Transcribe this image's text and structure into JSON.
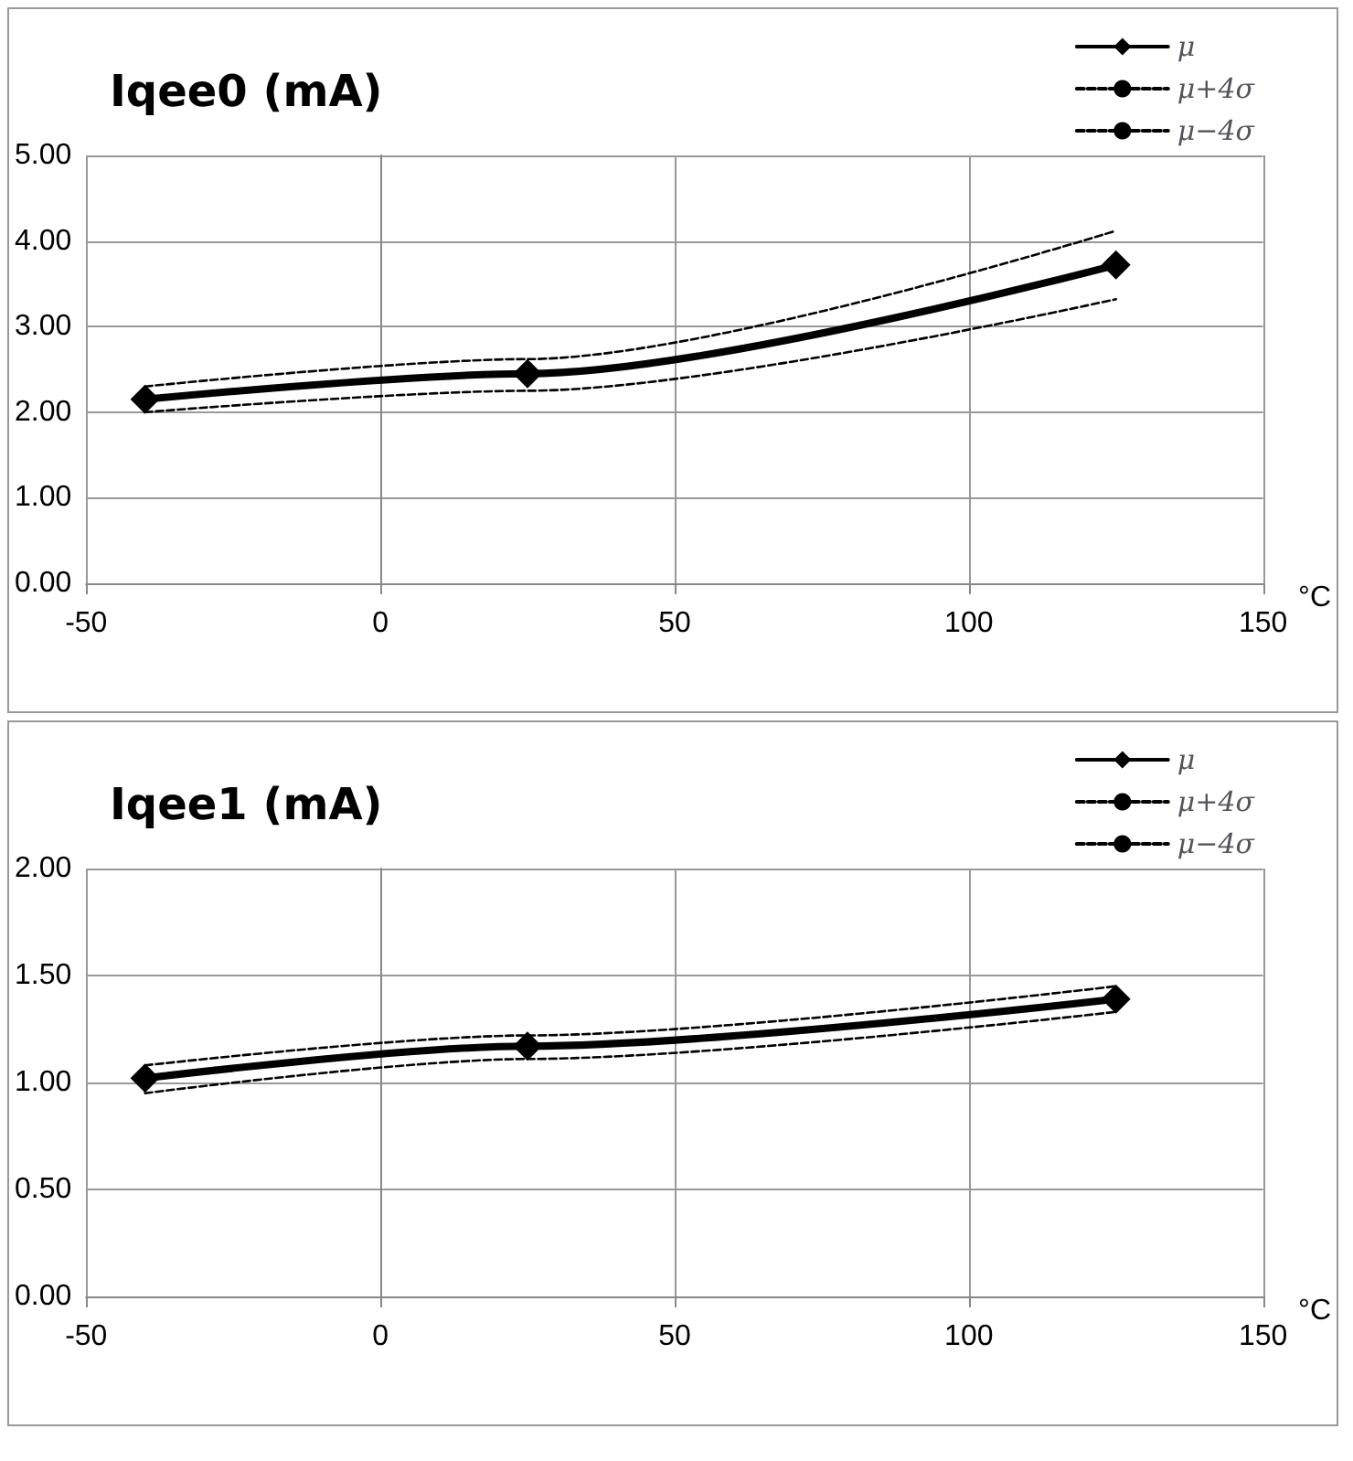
{
  "chart_data": [
    {
      "type": "line",
      "title": "Iqee0 (mA)",
      "xlabel": "°C",
      "x": [
        -40,
        25,
        125
      ],
      "xlim": [
        -50,
        150
      ],
      "xticks": [
        -50,
        0,
        50,
        100,
        150
      ],
      "ylim": [
        0,
        5
      ],
      "yticks": [
        {
          "value": 0,
          "label": "0.00"
        },
        {
          "value": 1,
          "label": "1.00"
        },
        {
          "value": 2,
          "label": "2.00"
        },
        {
          "value": 3,
          "label": "3.00"
        },
        {
          "value": 4,
          "label": "4.00"
        },
        {
          "value": 5,
          "label": "5.00"
        }
      ],
      "grid": true,
      "legend": "top right",
      "series": [
        {
          "name": "μ",
          "color": "#000000",
          "values": [
            2.15,
            2.45,
            3.72
          ],
          "marker": "diamond",
          "line_style": "solid"
        },
        {
          "name": "μ+4σ",
          "color": "#000000",
          "values": [
            2.3,
            2.62,
            4.12
          ],
          "marker": "none",
          "line_style": "dashed"
        },
        {
          "name": "μ−4σ",
          "color": "#000000",
          "values": [
            2.0,
            2.25,
            3.32
          ],
          "marker": "none",
          "line_style": "dashed"
        }
      ]
    },
    {
      "type": "line",
      "title": "Iqee1 (mA)",
      "xlabel": "°C",
      "x": [
        -40,
        25,
        125
      ],
      "xlim": [
        -50,
        150
      ],
      "xticks": [
        -50,
        0,
        50,
        100,
        150
      ],
      "ylim": [
        0,
        2
      ],
      "yticks": [
        {
          "value": 0,
          "label": "0.00"
        },
        {
          "value": 0.5,
          "label": "0.50"
        },
        {
          "value": 1,
          "label": "1.00"
        },
        {
          "value": 1.5,
          "label": "1.50"
        },
        {
          "value": 2,
          "label": "2.00"
        }
      ],
      "grid": true,
      "legend": "top right",
      "series": [
        {
          "name": "μ",
          "color": "#000000",
          "values": [
            1.02,
            1.17,
            1.39
          ],
          "marker": "diamond",
          "line_style": "solid"
        },
        {
          "name": "μ+4σ",
          "color": "#000000",
          "values": [
            1.08,
            1.22,
            1.45
          ],
          "marker": "none",
          "line_style": "dashed"
        },
        {
          "name": "μ−4σ",
          "color": "#000000",
          "values": [
            0.95,
            1.11,
            1.33
          ],
          "marker": "none",
          "line_style": "dashed"
        }
      ]
    }
  ]
}
